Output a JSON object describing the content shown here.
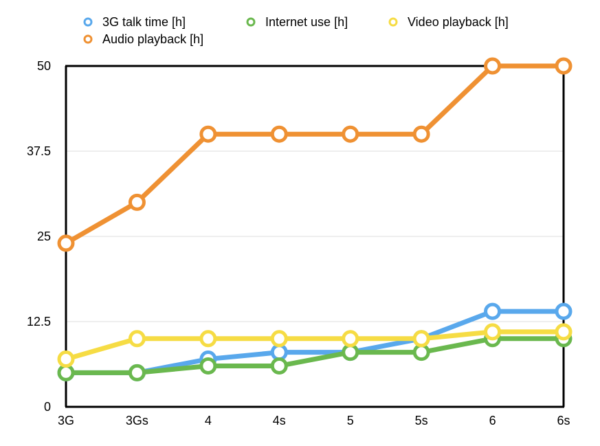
{
  "chart_data": {
    "type": "line",
    "categories": [
      "3G",
      "3Gs",
      "4",
      "4s",
      "5",
      "5s",
      "6",
      "6s"
    ],
    "yticks": [
      "0",
      "12.5",
      "25",
      "37.5",
      "50"
    ],
    "ylim": [
      0,
      50
    ],
    "grid": true,
    "legend_position": "top",
    "series": [
      {
        "name": "3G talk time [h]",
        "color": "#59a8ec",
        "values": [
          5,
          5,
          7,
          8,
          8,
          10,
          14,
          14
        ]
      },
      {
        "name": "Internet use [h]",
        "color": "#6ab84e",
        "values": [
          5,
          5,
          6,
          6,
          8,
          8,
          10,
          10
        ]
      },
      {
        "name": "Video playback [h]",
        "color": "#f6dc44",
        "values": [
          7,
          10,
          10,
          10,
          10,
          10,
          11,
          11
        ]
      },
      {
        "name": "Audio playback [h]",
        "color": "#ef9133",
        "values": [
          24,
          30,
          40,
          40,
          40,
          40,
          50,
          50
        ]
      }
    ]
  }
}
